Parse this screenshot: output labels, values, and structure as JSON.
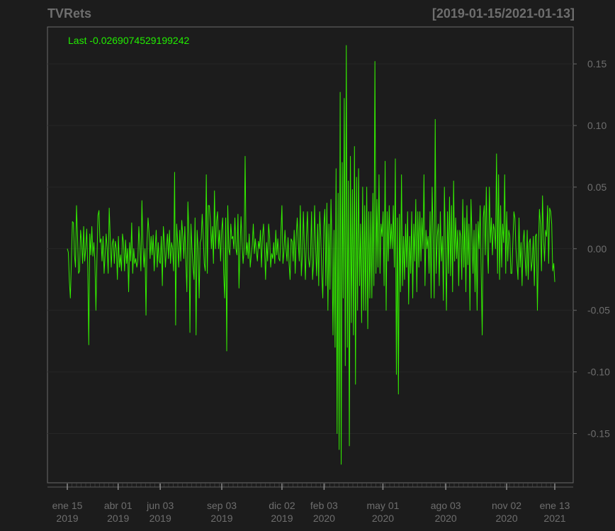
{
  "chart_data": {
    "type": "line",
    "title": "TVRets",
    "date_range": "[2019-01-15/2021-01-13]",
    "legend_text": "Last -0.0269074529199242",
    "ylim": [
      -0.19,
      0.18
    ],
    "yticks": [
      0.15,
      0.1,
      0.05,
      0.0,
      -0.05,
      -0.1,
      -0.15
    ],
    "ytick_labels": [
      "0.15",
      "0.10",
      "0.05",
      "0.00",
      "-0.05",
      "-0.10",
      "-0.15"
    ],
    "xticks": [
      {
        "line1": "ene 15",
        "line2": "2019",
        "date": "2019-01-15"
      },
      {
        "line1": "abr 01",
        "line2": "2019",
        "date": "2019-04-01"
      },
      {
        "line1": "jun 03",
        "line2": "2019",
        "date": "2019-06-03"
      },
      {
        "line1": "sep 03",
        "line2": "2019",
        "date": "2019-09-03"
      },
      {
        "line1": "dic 02",
        "line2": "2019",
        "date": "2019-12-02"
      },
      {
        "line1": "feb 03",
        "line2": "2020",
        "date": "2020-02-03"
      },
      {
        "line1": "may 01",
        "line2": "2020",
        "date": "2020-05-01"
      },
      {
        "line1": "ago 03",
        "line2": "2020",
        "date": "2020-08-03"
      },
      {
        "line1": "nov 02",
        "line2": "2020",
        "date": "2020-11-02"
      },
      {
        "line1": "ene 13",
        "line2": "2021",
        "date": "2021-01-13"
      }
    ],
    "x_start": "2019-01-15",
    "x_end": "2021-01-13",
    "grid": true,
    "line_color": "#33ee00",
    "series": [
      {
        "values": [
          0.0,
          -0.003,
          -0.026,
          -0.04,
          -0.01,
          0.022,
          0.021,
          -0.005,
          -0.015,
          0.035,
          0.01,
          -0.02,
          -0.018,
          0.015,
          0.005,
          -0.012,
          0.018,
          -0.01,
          0.0,
          0.016,
          -0.015,
          -0.078,
          0.012,
          -0.005,
          0.018,
          -0.006,
          0.005,
          -0.01,
          -0.05,
          -0.008,
          0.027,
          0.031,
          0.005,
          0.008,
          -0.01,
          0.01,
          -0.02,
          -0.005,
          0.012,
          0.0,
          -0.02,
          0.033,
          0.01,
          -0.015,
          0.004,
          0.008,
          -0.012,
          0.006,
          0.0,
          -0.025,
          0.01,
          -0.015,
          -0.005,
          -0.018,
          0.012,
          0.005,
          -0.018,
          0.007,
          -0.012,
          0.0,
          -0.035,
          0.005,
          -0.01,
          0.021,
          -0.02,
          0.0,
          -0.012,
          -0.008,
          -0.015,
          -0.01,
          0.018,
          0.002,
          -0.018,
          0.039,
          0.004,
          -0.015,
          0.0,
          -0.054,
          0.005,
          0.025,
          0.013,
          -0.008,
          0.01,
          -0.005,
          0.011,
          -0.018,
          0.0,
          0.015,
          -0.015,
          0.005,
          -0.01,
          -0.012,
          0.01,
          -0.03,
          0.018,
          0.005,
          -0.015,
          0.0,
          0.012,
          -0.008,
          0.015,
          -0.012,
          0.005,
          0.0,
          -0.018,
          0.062,
          -0.062,
          0.02,
          0.005,
          -0.015,
          0.015,
          -0.01,
          0.023,
          0.01,
          -0.008,
          0.018,
          -0.01,
          -0.035,
          0.038,
          0.012,
          -0.068,
          0.02,
          0.0,
          -0.015,
          -0.025,
          0.025,
          -0.07,
          0.015,
          0.0,
          -0.04,
          0.005,
          0.008,
          0.028,
          0.01,
          -0.012,
          -0.018,
          0.06,
          -0.02,
          0.035,
          0.035,
          0.022,
          0.0,
          0.018,
          -0.012,
          0.047,
          0.0,
          0.022,
          0.03,
          0.0,
          0.015,
          -0.01,
          0.015,
          0.025,
          -0.02,
          -0.04,
          0.025,
          -0.083,
          0.035,
          0.0,
          -0.005,
          0.02,
          0.008,
          0.01,
          0.0,
          0.025,
          0.0,
          -0.005,
          0.028,
          -0.032,
          0.0,
          0.026,
          0.005,
          -0.012,
          0.0,
          0.075,
          -0.005,
          0.005,
          -0.008,
          0.012,
          -0.015,
          -0.005,
          0.003,
          0.02,
          -0.004,
          0.008,
          -0.002,
          -0.01,
          0.006,
          0.0,
          0.015,
          -0.015,
          0.01,
          0.02,
          0.0,
          -0.025,
          0.005,
          -0.01,
          0.02,
          0.009,
          -0.015,
          -0.004,
          -0.008,
          0.005,
          -0.012,
          0.015,
          -0.005,
          0.008,
          -0.008,
          -0.01,
          0.012,
          0.035,
          -0.012,
          -0.002,
          0.015,
          0.0,
          -0.01,
          0.009,
          -0.012,
          -0.025,
          0.008,
          0.006,
          -0.01,
          0.015,
          -0.02,
          0.01,
          0.025,
          0.005,
          -0.01,
          0.035,
          -0.022,
          -0.005,
          0.03,
          0.0,
          -0.025,
          0.01,
          0.03,
          -0.008,
          -0.015,
          -0.005,
          0.03,
          -0.025,
          -0.01,
          0.035,
          0.0,
          -0.022,
          0.02,
          -0.03,
          0.03,
          0.01,
          -0.02,
          -0.04,
          0.018,
          0.032,
          -0.03,
          0.037,
          -0.05,
          0.02,
          -0.033,
          0.04,
          0.0,
          -0.07,
          0.015,
          -0.08,
          0.065,
          -0.15,
          0.045,
          -0.163,
          0.127,
          -0.175,
          0.07,
          -0.04,
          0.122,
          -0.095,
          0.165,
          -0.08,
          0.055,
          -0.16,
          0.075,
          -0.06,
          0.048,
          -0.07,
          0.083,
          -0.11,
          0.058,
          -0.05,
          0.065,
          -0.03,
          0.02,
          -0.06,
          0.05,
          -0.05,
          0.035,
          -0.05,
          0.05,
          -0.065,
          0.03,
          -0.04,
          0.03,
          -0.04,
          0.045,
          -0.03,
          0.152,
          -0.02,
          0.04,
          -0.015,
          0.06,
          -0.02,
          0.02,
          0.01,
          0.03,
          -0.03,
          0.071,
          -0.05,
          0.03,
          -0.01,
          0.035,
          0.0,
          0.02,
          0.0,
          0.035,
          -0.015,
          0.073,
          -0.102,
          0.025,
          -0.118,
          0.028,
          -0.035,
          0.06,
          -0.03,
          0.01,
          -0.025,
          0.02,
          -0.015,
          0.03,
          -0.045,
          0.01,
          -0.02,
          0.03,
          -0.04,
          0.02,
          -0.01,
          0.04,
          -0.035,
          0.03,
          -0.015,
          0.03,
          -0.01,
          0.025,
          0.0,
          0.06,
          -0.03,
          0.015,
          0.0,
          0.01,
          -0.02,
          0.03,
          -0.04,
          0.05,
          0.01,
          -0.04,
          0.105,
          -0.02,
          0.01,
          0.02,
          -0.03,
          0.03,
          -0.01,
          0.01,
          -0.042,
          0.05,
          0.0,
          -0.05,
          0.03,
          -0.02,
          0.042,
          -0.022,
          0.035,
          -0.035,
          0.055,
          -0.01,
          0.025,
          -0.008,
          0.015,
          -0.03,
          0.015,
          0.01,
          -0.025,
          0.04,
          -0.015,
          0.025,
          -0.035,
          0.035,
          -0.013,
          0.02,
          -0.05,
          0.04,
          0.01,
          -0.02,
          0.015,
          -0.035,
          0.02,
          -0.05,
          0.022,
          0.0,
          0.035,
          -0.02,
          -0.07,
          0.025,
          0.035,
          -0.005,
          0.05,
          0.0,
          -0.02,
          0.05,
          0.005,
          0.025,
          -0.005,
          0.02,
          0.015,
          0.0,
          0.077,
          -0.02,
          0.06,
          -0.025,
          0.035,
          -0.015,
          0.02,
          0.005,
          0.06,
          -0.02,
          0.03,
          -0.01,
          0.015,
          0.01,
          -0.02,
          -0.02,
          0.005,
          0.03,
          0.025,
          0.0,
          -0.012,
          -0.025,
          0.025,
          -0.015,
          0.005,
          -0.03,
          0.005,
          0.015,
          -0.008,
          -0.022,
          0.015,
          -0.025,
          0.005,
          0.008,
          -0.018,
          -0.01,
          0.01,
          -0.03,
          0.01,
          0.012,
          -0.05,
          0.0,
          0.032,
          0.02,
          -0.018,
          0.043,
          0.008,
          -0.01,
          0.015,
          0.01,
          0.035,
          -0.012,
          0.033,
          0.03,
          0.02,
          -0.018,
          -0.012,
          -0.027
        ]
      }
    ]
  }
}
